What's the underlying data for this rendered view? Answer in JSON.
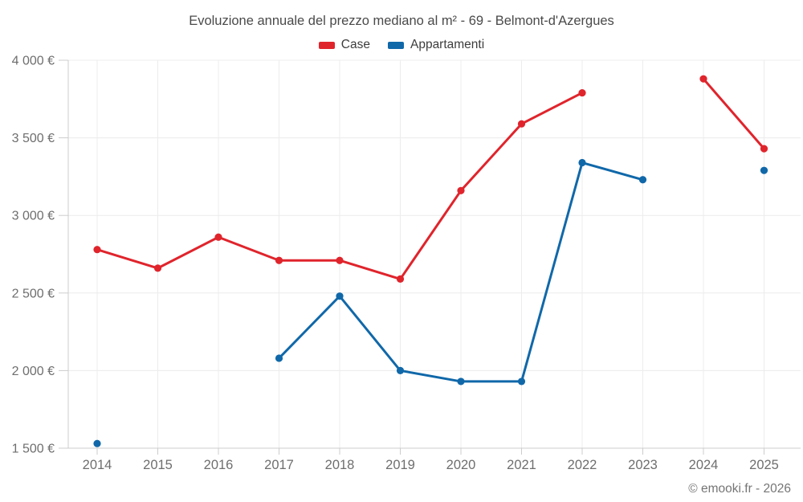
{
  "title": "Evoluzione annuale del prezzo mediano al m² - 69 - Belmont-d'Azergues",
  "footer": "© emooki.fr - 2026",
  "legend": [
    {
      "label": "Case",
      "color": "#e0242c"
    },
    {
      "label": "Appartamenti",
      "color": "#1068a9"
    }
  ],
  "colors": {
    "case_red": "#e0242c",
    "appartamenti_blue": "#1068a9",
    "grid": "#ececec",
    "axis": "#cccccc",
    "tick_label": "#6e6e6e",
    "title_text": "#4a4a4a"
  },
  "chart_data": {
    "type": "line",
    "title": "Evoluzione annuale del prezzo mediano al m² - 69 - Belmont-d'Azergues",
    "x": [
      2014,
      2015,
      2016,
      2017,
      2018,
      2019,
      2020,
      2021,
      2022,
      2023,
      2024,
      2025
    ],
    "series": [
      {
        "name": "Case",
        "color": "#e0242c",
        "values": [
          2780,
          2660,
          2860,
          2710,
          2710,
          2590,
          3160,
          3590,
          3790,
          null,
          3880,
          3430
        ]
      },
      {
        "name": "Appartamenti",
        "color": "#1068a9",
        "values": [
          1530,
          null,
          null,
          2080,
          2480,
          2000,
          1930,
          1930,
          3340,
          3230,
          null,
          3290
        ]
      }
    ],
    "ylim": [
      1500,
      4000
    ],
    "yticks": [
      1500,
      2000,
      2500,
      3000,
      3500,
      4000
    ],
    "ytick_labels": [
      "1 500 €",
      "2 000 €",
      "2 500 €",
      "3 000 €",
      "3 500 €",
      "4 000 €"
    ],
    "xlabel": "",
    "ylabel": "",
    "grid": true,
    "legend_position": "top"
  }
}
